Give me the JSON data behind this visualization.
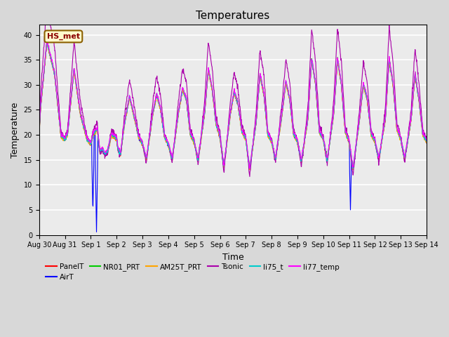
{
  "title": "Temperatures",
  "xlabel": "Time",
  "ylabel": "Temperature",
  "ylim": [
    0,
    42
  ],
  "yticks": [
    0,
    5,
    10,
    15,
    20,
    25,
    30,
    35,
    40
  ],
  "annotation_text": "HS_met",
  "annotation_color": "#8B0000",
  "annotation_bg": "#FFFACD",
  "annotation_border": "#8B6000",
  "series_colors": {
    "PanelT": "#FF0000",
    "AirT": "#0000FF",
    "NR01_PRT": "#00CC00",
    "AM25T_PRT": "#FFA500",
    "Tsonic": "#AA00AA",
    "li75_t": "#00CCCC",
    "li77_temp": "#FF00FF"
  },
  "xtick_labels": [
    "Aug 30",
    "Aug 31",
    "Sep 1",
    "Sep 2",
    "Sep 3",
    "Sep 4",
    "Sep 5",
    "Sep 6",
    "Sep 7",
    "Sep 8",
    "Sep 9",
    "Sep 10",
    "Sep 11",
    "Sep 12",
    "Sep 13",
    "Sep 14"
  ],
  "bg_color": "#D8D8D8",
  "plot_bg": "#EBEBEB"
}
